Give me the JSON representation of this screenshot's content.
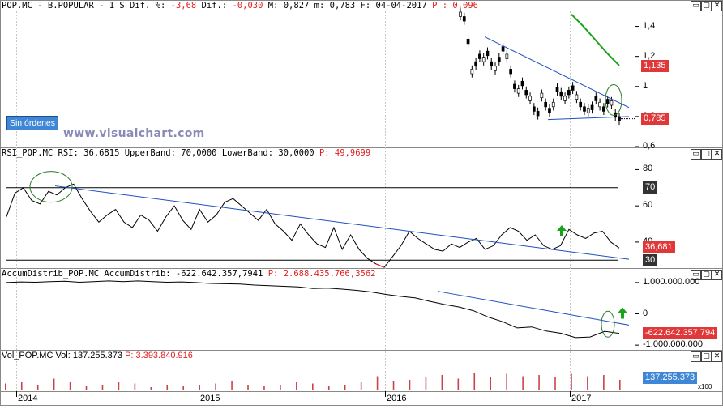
{
  "panels": {
    "price": {
      "header_parts": [
        {
          "t": "POP.MC - B.POPULAR -  1 S Dif. %: ",
          "c": "n"
        },
        {
          "t": "-3,68",
          "c": "neg"
        },
        {
          "t": " Dif.: ",
          "c": "n"
        },
        {
          "t": "-0,030",
          "c": "neg"
        },
        {
          "t": " M: 0,827 m: 0,783 F: 04-04-2017 ",
          "c": "n"
        },
        {
          "t": "P : 0,096",
          "c": "p"
        }
      ],
      "yticks": [
        "1,4",
        "1,2",
        "1",
        "0,8",
        "0,6"
      ],
      "tags": [
        {
          "text": "1,135",
          "color": "#e03838"
        },
        {
          "text": "0,785",
          "color": "#e03838"
        }
      ],
      "button_label": "Sin órdenes",
      "watermark": "www.visualchart.com"
    },
    "rsi": {
      "header_parts": [
        {
          "t": "RSI_POP.MC RSI: 36,6815 UpperBand: 70,0000 LowerBand: 30,0000 ",
          "c": "n"
        },
        {
          "t": "P: 49,9699",
          "c": "p"
        }
      ],
      "yticks": [
        "80",
        "60",
        "40"
      ],
      "tags": [
        {
          "text": "70",
          "color": "#333333"
        },
        {
          "text": "36,681",
          "color": "#e03838"
        },
        {
          "text": "30",
          "color": "#333333"
        }
      ]
    },
    "accum": {
      "header_parts": [
        {
          "t": "AccumDistrib_POP.MC AccumDistrib: -622.642.357,7941 ",
          "c": "n"
        },
        {
          "t": "P: 2.688.435.766,3562",
          "c": "p"
        }
      ],
      "yticks": [
        "1.000.000.000",
        "0",
        "-1.000.000.000"
      ],
      "tags": [
        {
          "text": "-622.642.357,794",
          "color": "#e03838"
        }
      ]
    },
    "volume": {
      "header_parts": [
        {
          "t": "Vol_POP.MC Vol: 137.255.373 ",
          "c": "n"
        },
        {
          "t": "P: 3.393.840.916",
          "c": "p"
        }
      ],
      "tags": [
        {
          "text": "137.255.373",
          "color": "#3f86d6"
        }
      ],
      "multiplier": "x100"
    }
  },
  "xaxis": {
    "labels": [
      "2014",
      "2015",
      "2016",
      "2017"
    ]
  },
  "colors": {
    "price_line": "#000000",
    "trendline": "#1f4fbf",
    "ma": "#19a319",
    "rsi_low": "#e02020",
    "arrow": "#19a319",
    "circle": "#2a7a2a"
  },
  "chart_data": [
    {
      "type": "line",
      "name": "price",
      "ylim": [
        0.6,
        1.5
      ],
      "x_range": [
        "2014",
        "2017-04"
      ],
      "y": [
        1.48,
        1.45,
        1.3,
        1.1,
        1.15,
        1.2,
        1.18,
        1.22,
        1.15,
        1.12,
        1.18,
        1.25,
        1.2,
        1.1,
        1.0,
        0.97,
        1.02,
        0.96,
        0.92,
        0.85,
        0.82,
        0.94,
        0.88,
        0.84,
        0.88,
        0.98,
        0.95,
        0.92,
        0.96,
        0.99,
        0.93,
        0.88,
        0.85,
        0.84,
        0.86,
        0.92,
        0.88,
        0.85,
        0.9,
        0.89,
        0.81,
        0.785
      ],
      "moving_average_y": [
        1.48,
        1.4,
        1.31,
        1.22,
        1.14
      ],
      "last": 0.785
    },
    {
      "type": "line",
      "name": "RSI",
      "ylim": [
        30,
        80
      ],
      "bands": {
        "upper": 70,
        "lower": 30
      },
      "y": [
        54,
        67,
        70,
        63,
        61,
        68,
        66,
        70,
        72,
        64,
        57,
        51,
        55,
        58,
        51,
        48,
        55,
        52,
        46,
        54,
        60,
        52,
        47,
        58,
        51,
        55,
        62,
        64,
        60,
        56,
        52,
        58,
        50,
        46,
        41,
        50,
        44,
        39,
        37,
        48,
        36,
        44,
        36,
        31,
        28,
        26,
        32,
        38,
        46,
        42,
        39,
        36,
        35,
        39,
        37,
        40,
        42,
        36,
        38,
        44,
        48,
        46,
        41,
        44,
        38,
        36,
        38,
        47,
        44,
        42,
        45,
        46,
        40,
        36.68
      ],
      "last": 36.6815
    },
    {
      "type": "line",
      "name": "AccumDistrib",
      "ylim": [
        -1100000000,
        1100000000
      ],
      "y": [
        1000000000,
        1020000000,
        1010000000,
        1030000000,
        1040000000,
        1010000000,
        1030000000,
        1050000000,
        1030000000,
        1050000000,
        1030000000,
        1010000000,
        1020000000,
        1000000000,
        970000000,
        960000000,
        950000000,
        920000000,
        900000000,
        880000000,
        860000000,
        810000000,
        820000000,
        790000000,
        750000000,
        700000000,
        620000000,
        560000000,
        510000000,
        400000000,
        300000000,
        220000000,
        100000000,
        -100000000,
        -250000000,
        -450000000,
        -420000000,
        -550000000,
        -620000000,
        -760000000,
        -740000000,
        -560000000,
        -622642357.79
      ],
      "last": -622642357.7941
    },
    {
      "type": "bar",
      "name": "Vol",
      "values_relative": [
        0.25,
        0.3,
        0.2,
        0.45,
        0.3,
        0.15,
        0.2,
        0.3,
        0.25,
        0.1,
        0.2,
        0.15,
        0.2,
        0.25,
        0.35,
        0.2,
        0.15,
        0.2,
        0.3,
        0.25,
        0.15,
        0.2,
        0.3,
        0.55,
        0.35,
        0.4,
        0.5,
        0.6,
        0.45,
        0.7,
        0.5,
        0.65,
        0.55,
        0.6,
        0.5,
        0.65,
        0.55,
        0.6,
        0.4
      ],
      "last": 137255373
    }
  ]
}
